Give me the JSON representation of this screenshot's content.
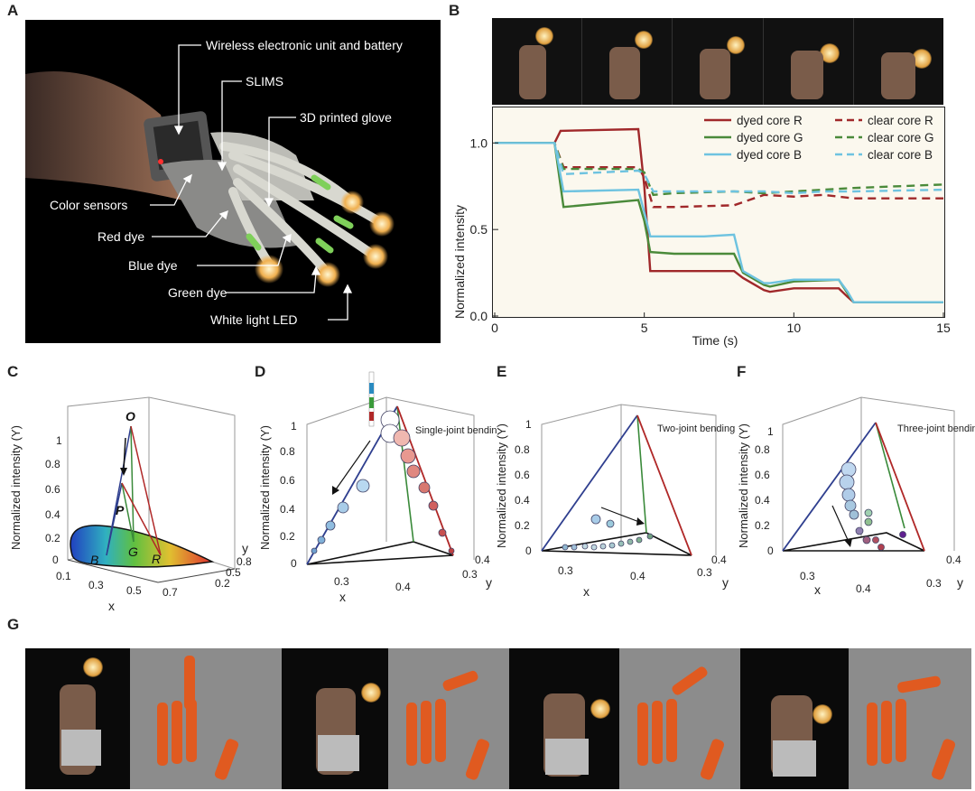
{
  "panels": {
    "a": "A",
    "b": "B",
    "c": "C",
    "d": "D",
    "e": "E",
    "f": "F",
    "g": "G"
  },
  "panel_a": {
    "annotations": [
      "Wireless electronic unit and battery",
      "SLIMS",
      "3D printed glove",
      "Color sensors",
      "Red dye",
      "Blue dye",
      "Green dye",
      "White light LED"
    ]
  },
  "panel_c": {
    "point_labels": [
      "O",
      "P",
      "B",
      "G",
      "R"
    ]
  },
  "panel_d": {
    "inset": "Single-joint bending"
  },
  "panel_e": {
    "inset": "Two-joint bending"
  },
  "panel_f": {
    "inset": "Three-joint bending"
  },
  "chart_data": [
    {
      "type": "line",
      "xlabel": "Time (s)",
      "ylabel": "Normalized intensity",
      "xlim": [
        0,
        15
      ],
      "ylim": [
        0,
        1.2
      ],
      "xticks": [
        0,
        5,
        10,
        15
      ],
      "yticks": [
        0.0,
        0.5,
        1.0
      ],
      "ytick_labels": [
        "0.0",
        "0.5",
        "1.0"
      ],
      "legend": "top-right",
      "series": [
        {
          "name": "dyed core R",
          "color": "#a0282a",
          "dash": false,
          "x": [
            0,
            2,
            2.2,
            4.8,
            5.0,
            5.2,
            6,
            7,
            8,
            8.3,
            9,
            9.2,
            10,
            11.5,
            11.8,
            12,
            15
          ],
          "y": [
            1.0,
            1.0,
            1.07,
            1.08,
            0.75,
            0.26,
            0.26,
            0.26,
            0.26,
            0.22,
            0.15,
            0.14,
            0.16,
            0.16,
            0.11,
            0.08,
            0.08
          ]
        },
        {
          "name": "dyed core G",
          "color": "#4a8a3a",
          "dash": false,
          "x": [
            0,
            2,
            2.3,
            4.8,
            5.0,
            5.2,
            6,
            7,
            8,
            8.3,
            9,
            9.2,
            10,
            11.5,
            11.8,
            12,
            15
          ],
          "y": [
            1.0,
            1.0,
            0.63,
            0.67,
            0.55,
            0.37,
            0.36,
            0.36,
            0.36,
            0.25,
            0.18,
            0.17,
            0.2,
            0.21,
            0.13,
            0.08,
            0.08
          ]
        },
        {
          "name": "dyed core B",
          "color": "#6ec3e0",
          "dash": false,
          "x": [
            0,
            2,
            2.3,
            4.8,
            5.0,
            5.2,
            6,
            7,
            8,
            8.3,
            9,
            9.2,
            10,
            11.5,
            11.8,
            12,
            15
          ],
          "y": [
            1.0,
            1.0,
            0.72,
            0.73,
            0.6,
            0.46,
            0.46,
            0.46,
            0.47,
            0.26,
            0.19,
            0.19,
            0.21,
            0.21,
            0.14,
            0.08,
            0.08
          ]
        },
        {
          "name": "clear core R",
          "color": "#a0282a",
          "dash": true,
          "x": [
            0,
            2,
            2.3,
            4.8,
            5.0,
            5.3,
            6,
            8,
            9,
            10,
            11,
            12,
            15
          ],
          "y": [
            1.0,
            1.0,
            0.86,
            0.86,
            0.8,
            0.63,
            0.63,
            0.64,
            0.7,
            0.69,
            0.7,
            0.68,
            0.68
          ]
        },
        {
          "name": "clear core G",
          "color": "#4a8a3a",
          "dash": true,
          "x": [
            0,
            2,
            2.3,
            4.8,
            5.0,
            5.3,
            6,
            8,
            9,
            10,
            11,
            12,
            15
          ],
          "y": [
            1.0,
            1.0,
            0.85,
            0.85,
            0.83,
            0.7,
            0.71,
            0.72,
            0.71,
            0.72,
            0.73,
            0.74,
            0.76
          ]
        },
        {
          "name": "clear core B",
          "color": "#6ec3e0",
          "dash": true,
          "x": [
            0,
            2,
            2.3,
            4.8,
            5.0,
            5.3,
            6,
            8,
            9,
            10,
            11,
            12,
            15
          ],
          "y": [
            1.0,
            1.0,
            0.82,
            0.84,
            0.82,
            0.72,
            0.72,
            0.72,
            0.72,
            0.71,
            0.72,
            0.72,
            0.73
          ]
        }
      ]
    },
    {
      "type": "scatter",
      "xlabel": "x",
      "ylabel": "Normalized intensity (Y)",
      "zlabel": "y",
      "xticks": [
        "0.1",
        "0.3",
        "0.5",
        "0.7"
      ],
      "yticks": [
        "0.2",
        "0.5",
        "0.8"
      ],
      "zticks": [
        "0",
        "0.2",
        "0.4",
        "0.6",
        "0.8",
        "1"
      ]
    },
    {
      "type": "scatter",
      "xlabel": "x",
      "ylabel": "Normalized intensity (Y)",
      "zlabel": "y",
      "xticks": [
        "0.3",
        "0.4"
      ],
      "yticks": [
        "0.3",
        "0.4"
      ],
      "zticks": [
        "0",
        "0.2",
        "0.4",
        "0.6",
        "0.8",
        "1"
      ]
    },
    {
      "type": "scatter",
      "xlabel": "x",
      "ylabel": "Normalized intensity (Y)",
      "zlabel": "y",
      "xticks": [
        "0.3",
        "0.4"
      ],
      "yticks": [
        "0.3",
        "0.4"
      ],
      "zticks": [
        "0",
        "0.2",
        "0.4",
        "0.6",
        "0.8",
        "1"
      ]
    },
    {
      "type": "scatter",
      "xlabel": "x",
      "ylabel": "Normalized intensity (Y)",
      "zlabel": "y",
      "xticks": [
        "0.3",
        "0.4"
      ],
      "yticks": [
        "0.3",
        "0.4"
      ],
      "zticks": [
        "0",
        "0.2",
        "0.4",
        "0.6",
        "0.8",
        "1"
      ]
    }
  ]
}
